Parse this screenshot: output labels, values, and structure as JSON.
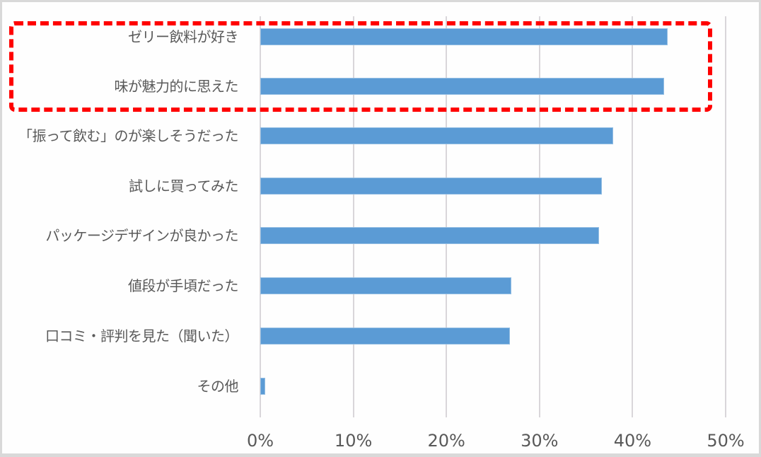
{
  "chart_data": {
    "type": "bar",
    "orientation": "horizontal",
    "title": "",
    "xlabel": "",
    "ylabel": "",
    "categories": [
      "ゼリー飲料が好き",
      "味が魅力的に思えた",
      "「振って飲む」のが楽しそうだった",
      "試しに買ってみた",
      "パッケージデザインが良かった",
      "値段が手頃だった",
      "口コミ・評判を見た（聞いた）",
      "その他"
    ],
    "values": [
      43.8,
      43.4,
      37.9,
      36.7,
      36.4,
      27.0,
      26.8,
      0.5
    ],
    "unit": "%",
    "xlim": [
      0,
      50
    ],
    "x_ticks": [
      "0%",
      "10%",
      "20%",
      "30%",
      "40%",
      "50%"
    ],
    "grid": "vertical",
    "bar_color": "#5b9bd5",
    "legend": null,
    "annotations": [
      {
        "type": "dashed-rectangle",
        "color": "#ff0000",
        "highlights": [
          "ゼリー飲料が好き",
          "味が魅力的に思えた"
        ]
      }
    ]
  },
  "axis": {
    "ticks": [
      "0%",
      "10%",
      "20%",
      "30%",
      "40%",
      "50%"
    ]
  },
  "bars": [
    {
      "label": "ゼリー飲料が好き",
      "value": 43.8
    },
    {
      "label": "味が魅力的に思えた",
      "value": 43.4
    },
    {
      "label": "「振って飲む」のが楽しそうだった",
      "value": 37.9
    },
    {
      "label": "試しに買ってみた",
      "value": 36.7
    },
    {
      "label": "パッケージデザインが良かった",
      "value": 36.4
    },
    {
      "label": "値段が手頃だった",
      "value": 27.0
    },
    {
      "label": "口コミ・評判を見た（聞いた）",
      "value": 26.8
    },
    {
      "label": "その他",
      "value": 0.5
    }
  ],
  "colors": {
    "bar": "#5b9bd5",
    "highlight": "#ff0000",
    "grid": "#d9d6da",
    "text": "#595959"
  }
}
